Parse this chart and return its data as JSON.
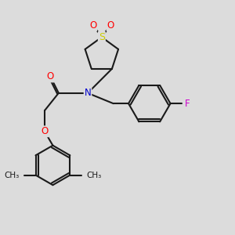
{
  "bg_color": "#dcdcdc",
  "line_color": "#1a1a1a",
  "bond_width": 1.5,
  "atom_colors": {
    "O": "#ff0000",
    "N": "#0000cc",
    "S": "#cccc00",
    "F": "#cc00cc",
    "C": "#1a1a1a"
  },
  "font_size": 8.5,
  "figsize": [
    3.0,
    3.0
  ],
  "dpi": 100
}
